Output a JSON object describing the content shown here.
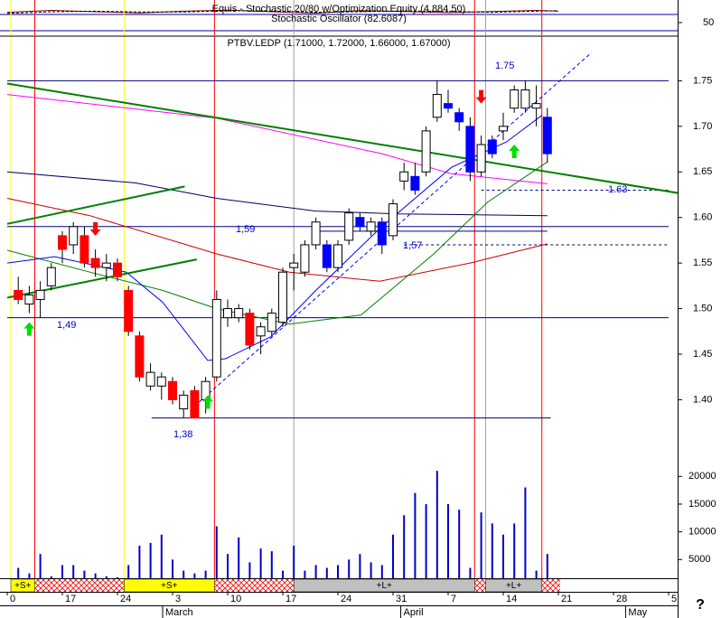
{
  "chart_data": [
    {
      "type": "stochastic",
      "title": "Equis - Stochastic 20/80 w/Optimization Equity (4,884.50)",
      "subtitle": "Stochastic Oscillator (82.6087)",
      "x": [
        0,
        4,
        8,
        12,
        16,
        20,
        24,
        28,
        32,
        36,
        40,
        44,
        48,
        50
      ],
      "series": [
        {
          "color": "#8b0000",
          "values": [
            88,
            95,
            90,
            86,
            92,
            96,
            90,
            85,
            94,
            91,
            87,
            91,
            95,
            92
          ]
        },
        {
          "color": "#000000",
          "dash": true,
          "values": [
            84,
            90,
            92,
            89,
            89,
            94,
            93,
            88,
            90,
            93,
            91,
            88,
            92,
            94
          ]
        }
      ],
      "xlim": [
        0,
        60
      ],
      "ylim": [
        0,
        100
      ],
      "yticks": [
        50
      ],
      "reference_lines": [
        80,
        20
      ]
    },
    {
      "type": "candlestick",
      "title": "PTBV.LEDP (1.71000, 1.72000, 1.66000, 1.67000)",
      "x": [
        1,
        2,
        3,
        4,
        5,
        6,
        7,
        8,
        9,
        10,
        11,
        12,
        13,
        14,
        15,
        16,
        17,
        18,
        19,
        20,
        21,
        22,
        23,
        24,
        25,
        26,
        27,
        28,
        29,
        30,
        31,
        32,
        33,
        34,
        35,
        36,
        37,
        38,
        39,
        40,
        41,
        42,
        43,
        44,
        45,
        46,
        47,
        48,
        49
      ],
      "open": [
        1.52,
        1.505,
        1.51,
        1.525,
        1.58,
        1.57,
        1.58,
        1.555,
        1.545,
        1.55,
        1.52,
        1.47,
        1.415,
        1.415,
        1.42,
        1.39,
        1.41,
        1.4,
        1.425,
        1.49,
        1.49,
        1.495,
        1.47,
        1.475,
        1.485,
        1.545,
        1.54,
        1.57,
        1.57,
        1.545,
        1.575,
        1.6,
        1.585,
        1.595,
        1.58,
        1.64,
        1.645,
        1.65,
        1.71,
        1.725,
        1.715,
        1.7,
        1.65,
        1.685,
        1.695,
        1.72,
        1.72,
        1.72,
        1.71
      ],
      "high": [
        1.535,
        1.525,
        1.53,
        1.55,
        1.585,
        1.595,
        1.59,
        1.565,
        1.56,
        1.555,
        1.525,
        1.475,
        1.44,
        1.43,
        1.425,
        1.41,
        1.415,
        1.425,
        1.52,
        1.51,
        1.505,
        1.5,
        1.485,
        1.5,
        1.545,
        1.56,
        1.575,
        1.6,
        1.575,
        1.575,
        1.61,
        1.605,
        1.6,
        1.6,
        1.62,
        1.66,
        1.66,
        1.7,
        1.75,
        1.74,
        1.72,
        1.71,
        1.69,
        1.69,
        1.715,
        1.745,
        1.75,
        1.745,
        1.72
      ],
      "low": [
        1.505,
        1.495,
        1.49,
        1.52,
        1.55,
        1.56,
        1.545,
        1.535,
        1.53,
        1.53,
        1.47,
        1.42,
        1.41,
        1.4,
        1.395,
        1.38,
        1.38,
        1.385,
        1.42,
        1.48,
        1.485,
        1.455,
        1.45,
        1.47,
        1.48,
        1.52,
        1.535,
        1.565,
        1.54,
        1.54,
        1.57,
        1.585,
        1.58,
        1.56,
        1.575,
        1.63,
        1.625,
        1.645,
        1.705,
        1.715,
        1.695,
        1.64,
        1.645,
        1.665,
        1.685,
        1.715,
        1.715,
        1.7,
        1.66
      ],
      "close": [
        1.51,
        1.515,
        1.52,
        1.545,
        1.565,
        1.59,
        1.55,
        1.545,
        1.55,
        1.535,
        1.475,
        1.425,
        1.43,
        1.425,
        1.4,
        1.405,
        1.38,
        1.42,
        1.51,
        1.5,
        1.5,
        1.46,
        1.48,
        1.495,
        1.54,
        1.55,
        1.57,
        1.595,
        1.545,
        1.57,
        1.605,
        1.59,
        1.595,
        1.57,
        1.615,
        1.65,
        1.63,
        1.695,
        1.735,
        1.72,
        1.705,
        1.65,
        1.68,
        1.67,
        1.7,
        1.74,
        1.74,
        1.725,
        1.67
      ],
      "colors": [
        "#ff0000",
        "#ffffff",
        "#ffffff",
        "#ffffff",
        "#ff0000",
        "#ffffff",
        "#ff0000",
        "#ff0000",
        "#ffffff",
        "#ff0000",
        "#ff0000",
        "#ff0000",
        "#ffffff",
        "#ffffff",
        "#ff0000",
        "#ffffff",
        "#ff0000",
        "#ffffff",
        "#ffffff",
        "#ffffff",
        "#ffffff",
        "#ff0000",
        "#ffffff",
        "#ffffff",
        "#ffffff",
        "#ffffff",
        "#ffffff",
        "#ffffff",
        "#0000ff",
        "#ffffff",
        "#ffffff",
        "#0000ff",
        "#ffffff",
        "#0000ff",
        "#ffffff",
        "#ffffff",
        "#0000ff",
        "#ffffff",
        "#ffffff",
        "#0000ff",
        "#0000ff",
        "#0000ff",
        "#ffffff",
        "#0000ff",
        "#ffffff",
        "#ffffff",
        "#ffffff",
        "#ffffff",
        "#0000ff"
      ],
      "xlim": [
        0,
        60
      ],
      "ylim": [
        1.33,
        1.8
      ],
      "yticks": [
        1.75,
        {
          "value": 1.7,
          "label": "1.70"
        },
        1.65,
        {
          "value": 1.6,
          "label": "1.60"
        },
        1.55,
        {
          "value": 1.5,
          "label": "1.50"
        },
        1.45,
        {
          "value": 1.4,
          "label": "1.40"
        }
      ],
      "xticks": [
        {
          "value": 0,
          "label": "0"
        },
        {
          "value": 5,
          "label": "17"
        },
        {
          "value": 10,
          "label": "24"
        },
        {
          "value": 15,
          "label": "3"
        },
        {
          "value": 20,
          "label": "10"
        },
        {
          "value": 25,
          "label": "17"
        },
        {
          "value": 30,
          "label": "24"
        },
        {
          "value": 35,
          "label": "31"
        },
        {
          "value": 40,
          "label": "7"
        },
        {
          "value": 45,
          "label": "14"
        },
        {
          "value": 50,
          "label": "21"
        },
        {
          "value": 55,
          "label": "28"
        },
        {
          "value": 60,
          "label": "5"
        }
      ],
      "months": [
        {
          "value": 14.1,
          "label": "March"
        },
        {
          "value": 35.7,
          "label": "April"
        },
        {
          "value": 56.1,
          "label": "May"
        }
      ],
      "moving_averages": [
        {
          "color": "#ff00ff",
          "x": [
            0,
            19,
            34,
            40.3,
            49
          ],
          "values": [
            1.735,
            1.709,
            1.67,
            1.648,
            1.637
          ]
        },
        {
          "color": "#000060",
          "x": [
            0,
            11.6,
            19,
            28,
            35.4,
            49
          ],
          "values": [
            1.65,
            1.638,
            1.621,
            1.607,
            1.604,
            1.602
          ]
        },
        {
          "color": "#cc0000",
          "x": [
            0,
            7.5,
            19,
            25.6,
            33.8,
            42,
            49
          ],
          "values": [
            1.621,
            1.602,
            1.56,
            1.54,
            1.53,
            1.55,
            1.571
          ]
        },
        {
          "color": "#008000",
          "x": [
            0,
            7.5,
            14.1,
            19,
            25.6,
            32.1,
            38.7,
            43.6,
            49
          ],
          "values": [
            1.564,
            1.54,
            1.52,
            1.5,
            1.483,
            1.493,
            1.56,
            1.617,
            1.661
          ]
        },
        {
          "color": "#0000ff",
          "x": [
            0,
            4.3,
            10.8,
            14.1,
            18.2,
            19.8,
            23.9,
            28,
            33.8,
            40.3,
            45.3,
            48.5
          ],
          "values": [
            1.55,
            1.557,
            1.54,
            1.507,
            1.443,
            1.445,
            1.469,
            1.52,
            1.588,
            1.655,
            1.683,
            1.712
          ]
        }
      ],
      "trend_lines": [
        {
          "color": "#008000",
          "width": 2,
          "x": [
            0,
            64.8
          ],
          "values": [
            1.747,
            1.619
          ]
        },
        {
          "color": "#008000",
          "width": 2,
          "x": [
            0,
            16.1
          ],
          "values": [
            1.593,
            1.634
          ]
        },
        {
          "color": "#008000",
          "width": 2,
          "x": [
            0,
            17.2
          ],
          "values": [
            1.512,
            1.554
          ]
        },
        {
          "color": "#0000ff",
          "width": 1,
          "dash": true,
          "x": [
            17,
            53
          ],
          "values": [
            1.393,
            1.781
          ]
        }
      ],
      "levels": [
        {
          "value": 1.75,
          "from": 0,
          "to": 60,
          "label": "1.75"
        },
        {
          "value": 1.49,
          "from": 0,
          "to": 60,
          "label": "1,49"
        },
        {
          "value": 1.38,
          "from": 13.1,
          "to": 49.3,
          "label": "1,38"
        },
        {
          "value": 1.59,
          "from": 0,
          "to": 60,
          "label": "1,59"
        },
        {
          "value": 1.57,
          "from": 36,
          "to": 60,
          "dash": true,
          "label": "1,57"
        },
        {
          "value": 1.63,
          "from": 43,
          "to": 60,
          "dash": true,
          "label": "1.63"
        },
        {
          "value": 1.585,
          "from": 28,
          "to": 49
        }
      ],
      "arrows": [
        {
          "x": 2,
          "value": 1.485,
          "direction": "up",
          "color": "#00dd00"
        },
        {
          "x": 8,
          "value": 1.58,
          "direction": "down",
          "color": "#ff0000"
        },
        {
          "x": 18.2,
          "value": 1.405,
          "direction": "up",
          "color": "#00dd00"
        },
        {
          "x": 43,
          "value": 1.725,
          "direction": "down",
          "color": "#ff0000"
        },
        {
          "x": 46,
          "value": 1.68,
          "direction": "up",
          "color": "#00dd00"
        }
      ],
      "signals": [
        {
          "label": "+S+",
          "color": "#ffff00",
          "start": 0.33,
          "end": 2.5,
          "start_line": "#ffff00",
          "end_line": "#ff0000"
        },
        {
          "label": "+S+",
          "color": "#ffff00",
          "start": 10.6,
          "end": 18.8,
          "start_line": "#ffff00",
          "end_line": "#ff0000"
        },
        {
          "label": "+L+",
          "color": "#c0c0c0",
          "start": 26,
          "end": 42.4,
          "start_line": "#a0a0a0",
          "end_line": "#ff0000"
        },
        {
          "label": "+L+",
          "color": "#c0c0c0",
          "start": 43.4,
          "end": 48.5,
          "start_line": "#a0a0a0",
          "end_line": "#ff0000"
        }
      ]
    },
    {
      "type": "volume",
      "x": [
        1,
        2,
        3,
        4,
        5,
        6,
        7,
        8,
        9,
        10,
        11,
        12,
        13,
        14,
        15,
        16,
        17,
        18,
        19,
        20,
        21,
        22,
        23,
        24,
        25,
        26,
        27,
        28,
        29,
        30,
        31,
        32,
        33,
        34,
        35,
        36,
        37,
        38,
        39,
        40,
        41,
        42,
        43,
        44,
        45,
        46,
        47,
        48,
        49
      ],
      "values": [
        3500,
        2500,
        6000,
        2000,
        4000,
        4000,
        3000,
        2500,
        2000,
        1800,
        4000,
        7500,
        8000,
        9500,
        5000,
        3000,
        2500,
        3000,
        11000,
        6000,
        9000,
        4500,
        7000,
        6500,
        3000,
        7500,
        3000,
        4000,
        3500,
        4000,
        5000,
        6000,
        4500,
        4000,
        9500,
        13000,
        17000,
        15000,
        21000,
        15000,
        14000,
        3500,
        13500,
        11500,
        9500,
        11500,
        18000,
        3000,
        6000
      ],
      "color": "#0000cc",
      "xlim": [
        0,
        60
      ],
      "ylim": [
        0,
        22000
      ],
      "yticks": [
        5000,
        10000,
        15000,
        20000
      ]
    }
  ],
  "help_label": "?"
}
